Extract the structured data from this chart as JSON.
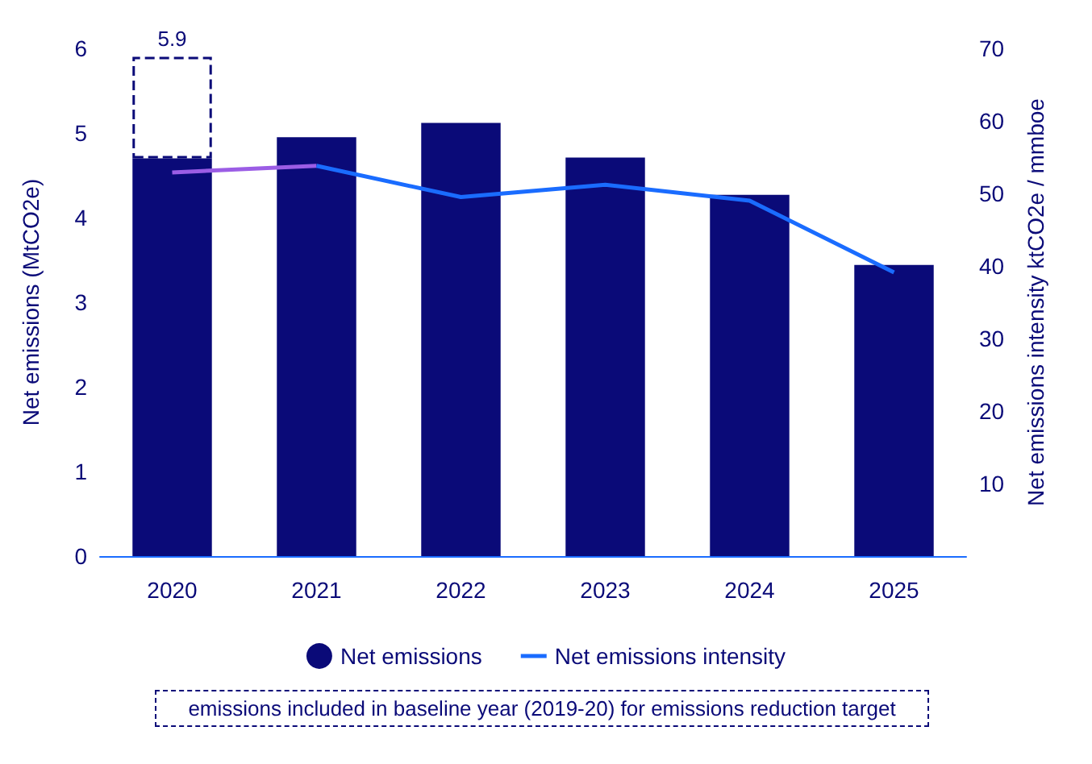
{
  "chart_data": {
    "type": "bar",
    "stacked": true,
    "categories": [
      "2020",
      "2021",
      "2022",
      "2023",
      "2024",
      "2025"
    ],
    "ylabel": "Net emissions (MtCO2e)",
    "y2label": "Net emissions intensity ktCO2e / mmboe",
    "ylim": [
      0,
      6
    ],
    "yticks": [
      0,
      1,
      2,
      3,
      4,
      5,
      6
    ],
    "y2lim": [
      0,
      70
    ],
    "y2ticks": [
      10,
      20,
      30,
      40,
      50,
      60,
      70
    ],
    "series": [
      {
        "name": "Net emissions",
        "color": "#0a0a78",
        "values": [
          4.7,
          4.95,
          5.12,
          4.71,
          4.27,
          3.44
        ]
      },
      {
        "color": "#ffffff",
        "line_style": "dashed",
        "values": [
          1.2,
          null,
          null,
          null,
          null,
          null
        ]
      },
      {
        "type": "line",
        "axis": "y2",
        "color": "#9b5de5",
        "values": [
          52.9,
          53.8,
          null,
          null,
          null,
          null
        ]
      },
      {
        "type": "line",
        "axis": "y2",
        "name": "Net emissions intensity",
        "color": "#1a6cff",
        "values": [
          null,
          53.8,
          49.5,
          51.2,
          49.0,
          39.1
        ]
      }
    ],
    "totals": [
      "5.9",
      null,
      null,
      null,
      null,
      null
    ],
    "legend": "bottom",
    "grid": false,
    "marker": "none",
    "annotations": [
      "emissions included in baseline year (2019-20) for emissions reduction target"
    ]
  }
}
